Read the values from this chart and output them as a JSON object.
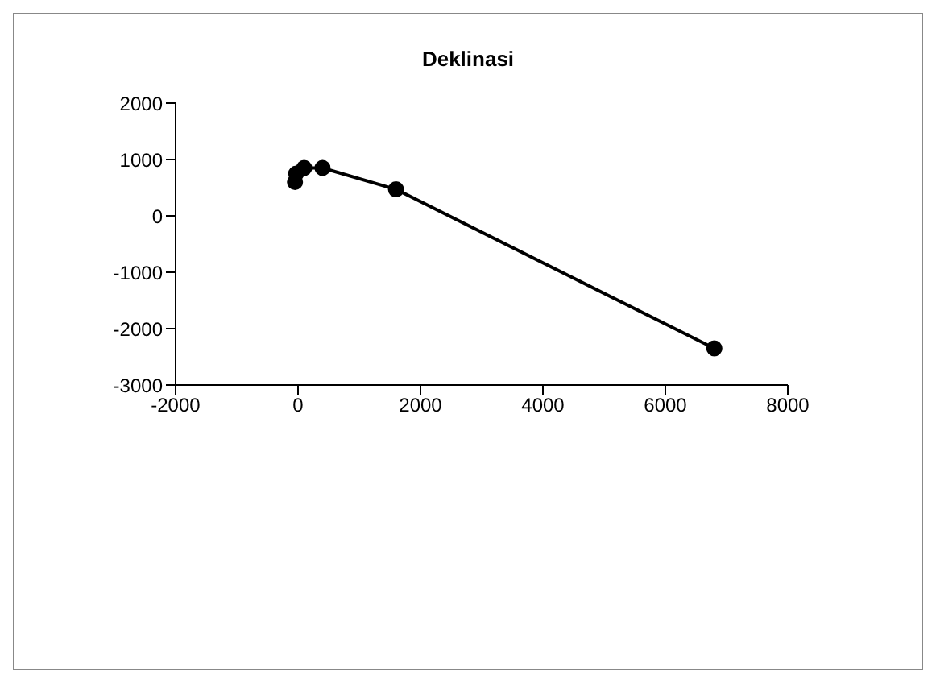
{
  "chart_data": {
    "type": "line",
    "title": "Deklinasi",
    "marker": "circle",
    "series": [
      {
        "color": "#000000",
        "x": [
          -50,
          -30,
          100,
          400,
          1600,
          6800
        ],
        "values": [
          600,
          750,
          850,
          850,
          470,
          -2350
        ]
      }
    ],
    "xlim": [
      -2000,
      8000
    ],
    "xticks": [
      -2000,
      0,
      2000,
      4000,
      6000,
      8000
    ],
    "ylim": [
      -3000,
      2000
    ],
    "yticks": [
      -3000,
      -2000,
      -1000,
      0,
      1000,
      2000
    ]
  }
}
